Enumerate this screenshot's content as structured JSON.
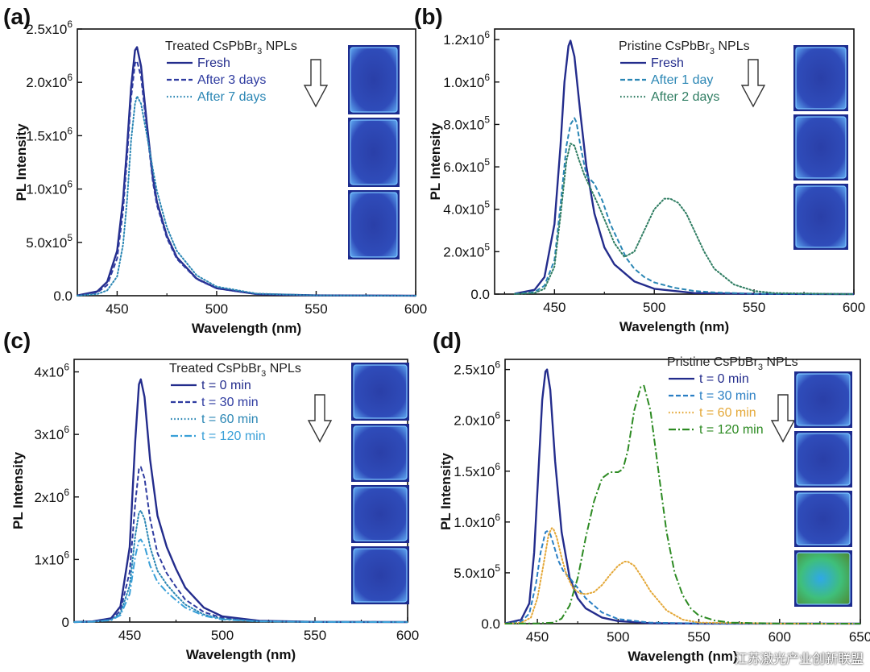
{
  "watermark": "江苏激光产业创新联盟",
  "colors": {
    "axis": "#111111",
    "navy": "#232c8c",
    "teal": "#2a86b4",
    "green_dark": "#2f7d62",
    "cyan": "#3aa0d8",
    "orange": "#e4a838",
    "green": "#2c8a22"
  },
  "chart_data": [
    {
      "panel_label": "(a)",
      "type": "line",
      "title": "Treated CsPbBr3 NPLs",
      "title_main": "Treated CsPbBr",
      "title_sub": "3",
      "title_tail": " NPLs",
      "xlabel": "Wavelength (nm)",
      "ylabel": "PL Intensity",
      "xlim": [
        430,
        600
      ],
      "ylim": [
        0,
        2500000
      ],
      "xticks": [
        450,
        500,
        550,
        600
      ],
      "xtick_labels": [
        "450",
        "500",
        "550",
        "600"
      ],
      "yticks": [
        0,
        500000,
        1000000,
        1500000,
        2000000,
        2500000
      ],
      "ytick_labels": [
        {
          "m": "0.0",
          "e": ""
        },
        {
          "m": "5.0x10",
          "e": "5"
        },
        {
          "m": "1.0x10",
          "e": "6"
        },
        {
          "m": "1.5x10",
          "e": "6"
        },
        {
          "m": "2.0x10",
          "e": "6"
        },
        {
          "m": "2.5x10",
          "e": "6"
        }
      ],
      "legend_location": "top-center",
      "inset_squares": 3,
      "series": [
        {
          "name": "Fresh",
          "color": "#232c8c",
          "style": "solid",
          "x": [
            430,
            440,
            445,
            450,
            453,
            455,
            457,
            459,
            460,
            462,
            465,
            468,
            470,
            475,
            480,
            490,
            500,
            520,
            550,
            600
          ],
          "y": [
            2000,
            40000,
            130000,
            420000,
            900000,
            1400000,
            1950000,
            2300000,
            2330000,
            2150000,
            1600000,
            1100000,
            880000,
            560000,
            360000,
            160000,
            70000,
            15000,
            3000,
            0
          ]
        },
        {
          "name": "After 3 days",
          "color": "#2e3ba0",
          "style": "dashed",
          "x": [
            430,
            440,
            445,
            450,
            453,
            455,
            457,
            459,
            460,
            462,
            465,
            468,
            470,
            475,
            480,
            490,
            500,
            520,
            550,
            600
          ],
          "y": [
            1500,
            30000,
            100000,
            350000,
            800000,
            1300000,
            1850000,
            2180000,
            2200000,
            2050000,
            1550000,
            1060000,
            850000,
            540000,
            345000,
            155000,
            68000,
            15000,
            3000,
            0
          ]
        },
        {
          "name": "After 7 days",
          "color": "#2a86b4",
          "style": "dotted",
          "x": [
            430,
            440,
            445,
            450,
            453,
            455,
            457,
            459,
            460,
            462,
            465,
            468,
            470,
            475,
            480,
            490,
            500,
            520,
            550,
            600
          ],
          "y": [
            800,
            15000,
            50000,
            180000,
            480000,
            900000,
            1450000,
            1800000,
            1870000,
            1800000,
            1500000,
            1180000,
            980000,
            640000,
            420000,
            190000,
            85000,
            20000,
            3000,
            0
          ]
        }
      ]
    },
    {
      "panel_label": "(b)",
      "type": "line",
      "title": "Pristine CsPbBr3 NPLs",
      "title_main": "Pristine CsPbBr",
      "title_sub": "3",
      "title_tail": " NPLs",
      "xlabel": "Wavelength (nm)",
      "ylabel": "PL Intensity",
      "xlim": [
        420,
        600
      ],
      "ylim": [
        0,
        1250000
      ],
      "xticks": [
        450,
        500,
        550,
        600
      ],
      "xtick_labels": [
        "450",
        "500",
        "550",
        "600"
      ],
      "yticks": [
        0,
        200000,
        400000,
        600000,
        800000,
        1000000,
        1200000
      ],
      "ytick_labels": [
        {
          "m": "0.0",
          "e": ""
        },
        {
          "m": "2.0x10",
          "e": "5"
        },
        {
          "m": "4.0x10",
          "e": "5"
        },
        {
          "m": "6.0x10",
          "e": "5"
        },
        {
          "m": "8.0x10",
          "e": "5"
        },
        {
          "m": "1.0x10",
          "e": "6"
        },
        {
          "m": "1.2x10",
          "e": "6"
        }
      ],
      "legend_location": "top-center",
      "inset_squares": 3,
      "series": [
        {
          "name": "Fresh",
          "color": "#232c8c",
          "style": "solid",
          "x": [
            430,
            440,
            445,
            450,
            453,
            455,
            457,
            458,
            460,
            463,
            466,
            470,
            475,
            480,
            490,
            500,
            520,
            550,
            600
          ],
          "y": [
            2000,
            20000,
            80000,
            330000,
            700000,
            1000000,
            1170000,
            1195000,
            1120000,
            850000,
            600000,
            380000,
            220000,
            140000,
            60000,
            25000,
            5000,
            1000,
            0
          ]
        },
        {
          "name": "After 1 day",
          "color": "#2a86b4",
          "style": "dashed",
          "x": [
            430,
            440,
            445,
            450,
            453,
            456,
            458,
            460,
            461,
            463,
            466,
            470,
            474,
            478,
            482,
            486,
            490,
            495,
            500,
            510,
            520,
            530,
            550,
            600
          ],
          "y": [
            1000,
            10000,
            40000,
            160000,
            420000,
            700000,
            800000,
            830000,
            810000,
            700000,
            560000,
            520000,
            440000,
            330000,
            250000,
            170000,
            120000,
            80000,
            55000,
            30000,
            15000,
            8000,
            2000,
            0
          ]
        },
        {
          "name": "After 2 days",
          "color": "#2f7d62",
          "style": "dotted",
          "x": [
            430,
            440,
            445,
            450,
            453,
            456,
            458,
            460,
            462,
            465,
            468,
            472,
            476,
            480,
            485,
            490,
            495,
            500,
            505,
            508,
            512,
            516,
            520,
            525,
            530,
            540,
            550,
            560,
            600
          ],
          "y": [
            500,
            5000,
            25000,
            130000,
            370000,
            630000,
            710000,
            700000,
            640000,
            560000,
            500000,
            420000,
            330000,
            240000,
            175000,
            200000,
            300000,
            400000,
            450000,
            450000,
            430000,
            380000,
            300000,
            200000,
            120000,
            45000,
            15000,
            5000,
            0
          ]
        }
      ]
    },
    {
      "panel_label": "(c)",
      "type": "line",
      "title": "Treated CsPbBr3 NPLs",
      "title_main": "Treated CsPbBr",
      "title_sub": "3",
      "title_tail": " NPLs",
      "xlabel": "Wavelength (nm)",
      "ylabel": "PL Intensity",
      "xlim": [
        420,
        600
      ],
      "ylim": [
        0,
        4200000
      ],
      "xticks": [
        450,
        500,
        550,
        600
      ],
      "xtick_labels": [
        "450",
        "500",
        "550",
        "600"
      ],
      "yticks": [
        0,
        1000000,
        2000000,
        3000000,
        4000000
      ],
      "ytick_labels": [
        {
          "m": "0",
          "e": ""
        },
        {
          "m": "1x10",
          "e": "6"
        },
        {
          "m": "2x10",
          "e": "6"
        },
        {
          "m": "3x10",
          "e": "6"
        },
        {
          "m": "4x10",
          "e": "6"
        }
      ],
      "legend_location": "top-center",
      "inset_squares": 4,
      "series": [
        {
          "name": "t = 0 min",
          "color": "#232c8c",
          "style": "solid",
          "x": [
            420,
            430,
            440,
            445,
            450,
            453,
            455,
            456,
            458,
            461,
            465,
            470,
            475,
            480,
            490,
            500,
            520,
            550,
            600
          ],
          "y": [
            0,
            10000,
            60000,
            250000,
            1200000,
            2900000,
            3800000,
            3880000,
            3600000,
            2600000,
            1700000,
            1200000,
            850000,
            550000,
            230000,
            90000,
            20000,
            3000,
            0
          ]
        },
        {
          "name": "t = 30 min",
          "color": "#2e3ba0",
          "style": "dashed",
          "x": [
            420,
            430,
            440,
            445,
            450,
            453,
            455,
            456,
            458,
            461,
            465,
            470,
            475,
            480,
            490,
            500,
            520,
            550,
            600
          ],
          "y": [
            0,
            8000,
            45000,
            180000,
            800000,
            1900000,
            2450000,
            2480000,
            2300000,
            1650000,
            1100000,
            780000,
            560000,
            360000,
            160000,
            65000,
            15000,
            2000,
            0
          ]
        },
        {
          "name": "t = 60 min",
          "color": "#2a86b4",
          "style": "dotted",
          "x": [
            420,
            430,
            440,
            445,
            450,
            453,
            455,
            456,
            458,
            461,
            465,
            470,
            475,
            480,
            490,
            500,
            520,
            550,
            600
          ],
          "y": [
            0,
            6000,
            35000,
            140000,
            580000,
            1380000,
            1750000,
            1780000,
            1650000,
            1200000,
            820000,
            600000,
            430000,
            280000,
            120000,
            50000,
            12000,
            2000,
            0
          ]
        },
        {
          "name": "t = 120 min",
          "color": "#3aa0d8",
          "style": "dashdot",
          "x": [
            420,
            430,
            440,
            445,
            450,
            453,
            455,
            456,
            458,
            461,
            465,
            470,
            475,
            480,
            490,
            500,
            520,
            550,
            600
          ],
          "y": [
            0,
            5000,
            28000,
            110000,
            450000,
            1050000,
            1300000,
            1320000,
            1220000,
            900000,
            640000,
            480000,
            350000,
            230000,
            100000,
            40000,
            10000,
            1500,
            0
          ]
        }
      ]
    },
    {
      "panel_label": "(d)",
      "type": "line",
      "title": "Pristine CsPbBr3 NPLs",
      "title_main": "Pristine CsPbBr",
      "title_sub": "3",
      "title_tail": " NPLs",
      "xlabel": "Wavelength (nm)",
      "ylabel": "PL Intensity",
      "xlim": [
        430,
        650
      ],
      "ylim": [
        0,
        2600000
      ],
      "xticks": [
        450,
        500,
        550,
        600,
        650
      ],
      "xtick_labels": [
        "450",
        "500",
        "550",
        "600",
        "650"
      ],
      "yticks": [
        0,
        500000,
        1000000,
        1500000,
        2000000,
        2500000
      ],
      "ytick_labels": [
        {
          "m": "0.0",
          "e": ""
        },
        {
          "m": "5.0x10",
          "e": "5"
        },
        {
          "m": "1.0x10",
          "e": "6"
        },
        {
          "m": "1.5x10",
          "e": "6"
        },
        {
          "m": "2.0x10",
          "e": "6"
        },
        {
          "m": "2.5x10",
          "e": "6"
        }
      ],
      "legend_location": "top-center",
      "inset_squares": 4,
      "series": [
        {
          "name": "t = 0 min",
          "color": "#232c8c",
          "style": "solid",
          "x": [
            430,
            440,
            445,
            448,
            451,
            453,
            455,
            456,
            458,
            461,
            465,
            470,
            475,
            480,
            490,
            500,
            520,
            550,
            650
          ],
          "y": [
            2000,
            40000,
            200000,
            700000,
            1600000,
            2200000,
            2480000,
            2500000,
            2300000,
            1600000,
            900000,
            450000,
            250000,
            150000,
            60000,
            25000,
            5000,
            1000,
            0
          ]
        },
        {
          "name": "t = 30 min",
          "color": "#2a7fc4",
          "style": "dashed",
          "x": [
            430,
            440,
            445,
            449,
            452,
            455,
            456,
            458,
            460,
            463,
            466,
            470,
            475,
            480,
            490,
            500,
            520,
            550,
            650
          ],
          "y": [
            1000,
            20000,
            100000,
            380000,
            700000,
            900000,
            910000,
            880000,
            780000,
            620000,
            520000,
            450000,
            350000,
            250000,
            110000,
            45000,
            10000,
            2000,
            0
          ]
        },
        {
          "name": "t = 60 min",
          "color": "#e4a838",
          "style": "dotted",
          "x": [
            430,
            440,
            446,
            450,
            454,
            457,
            459,
            460,
            462,
            465,
            468,
            472,
            476,
            480,
            485,
            490,
            495,
            500,
            504,
            506,
            510,
            515,
            520,
            530,
            540,
            550,
            600,
            650
          ],
          "y": [
            500,
            8000,
            60000,
            250000,
            600000,
            880000,
            940000,
            930000,
            850000,
            650000,
            480000,
            350000,
            300000,
            290000,
            310000,
            380000,
            480000,
            570000,
            610000,
            610000,
            570000,
            450000,
            320000,
            130000,
            40000,
            10000,
            1000,
            0
          ]
        },
        {
          "name": "t = 120 min",
          "color": "#2c8a22",
          "style": "dashdot",
          "x": [
            430,
            450,
            460,
            465,
            470,
            475,
            480,
            485,
            490,
            495,
            500,
            503,
            506,
            510,
            514,
            516,
            520,
            525,
            530,
            535,
            540,
            545,
            550,
            560,
            570,
            600,
            650
          ],
          "y": [
            0,
            2000,
            10000,
            50000,
            180000,
            450000,
            850000,
            1200000,
            1430000,
            1490000,
            1490000,
            1520000,
            1700000,
            2100000,
            2330000,
            2340000,
            2100000,
            1500000,
            900000,
            500000,
            280000,
            150000,
            80000,
            30000,
            10000,
            1000,
            0
          ]
        }
      ]
    }
  ]
}
